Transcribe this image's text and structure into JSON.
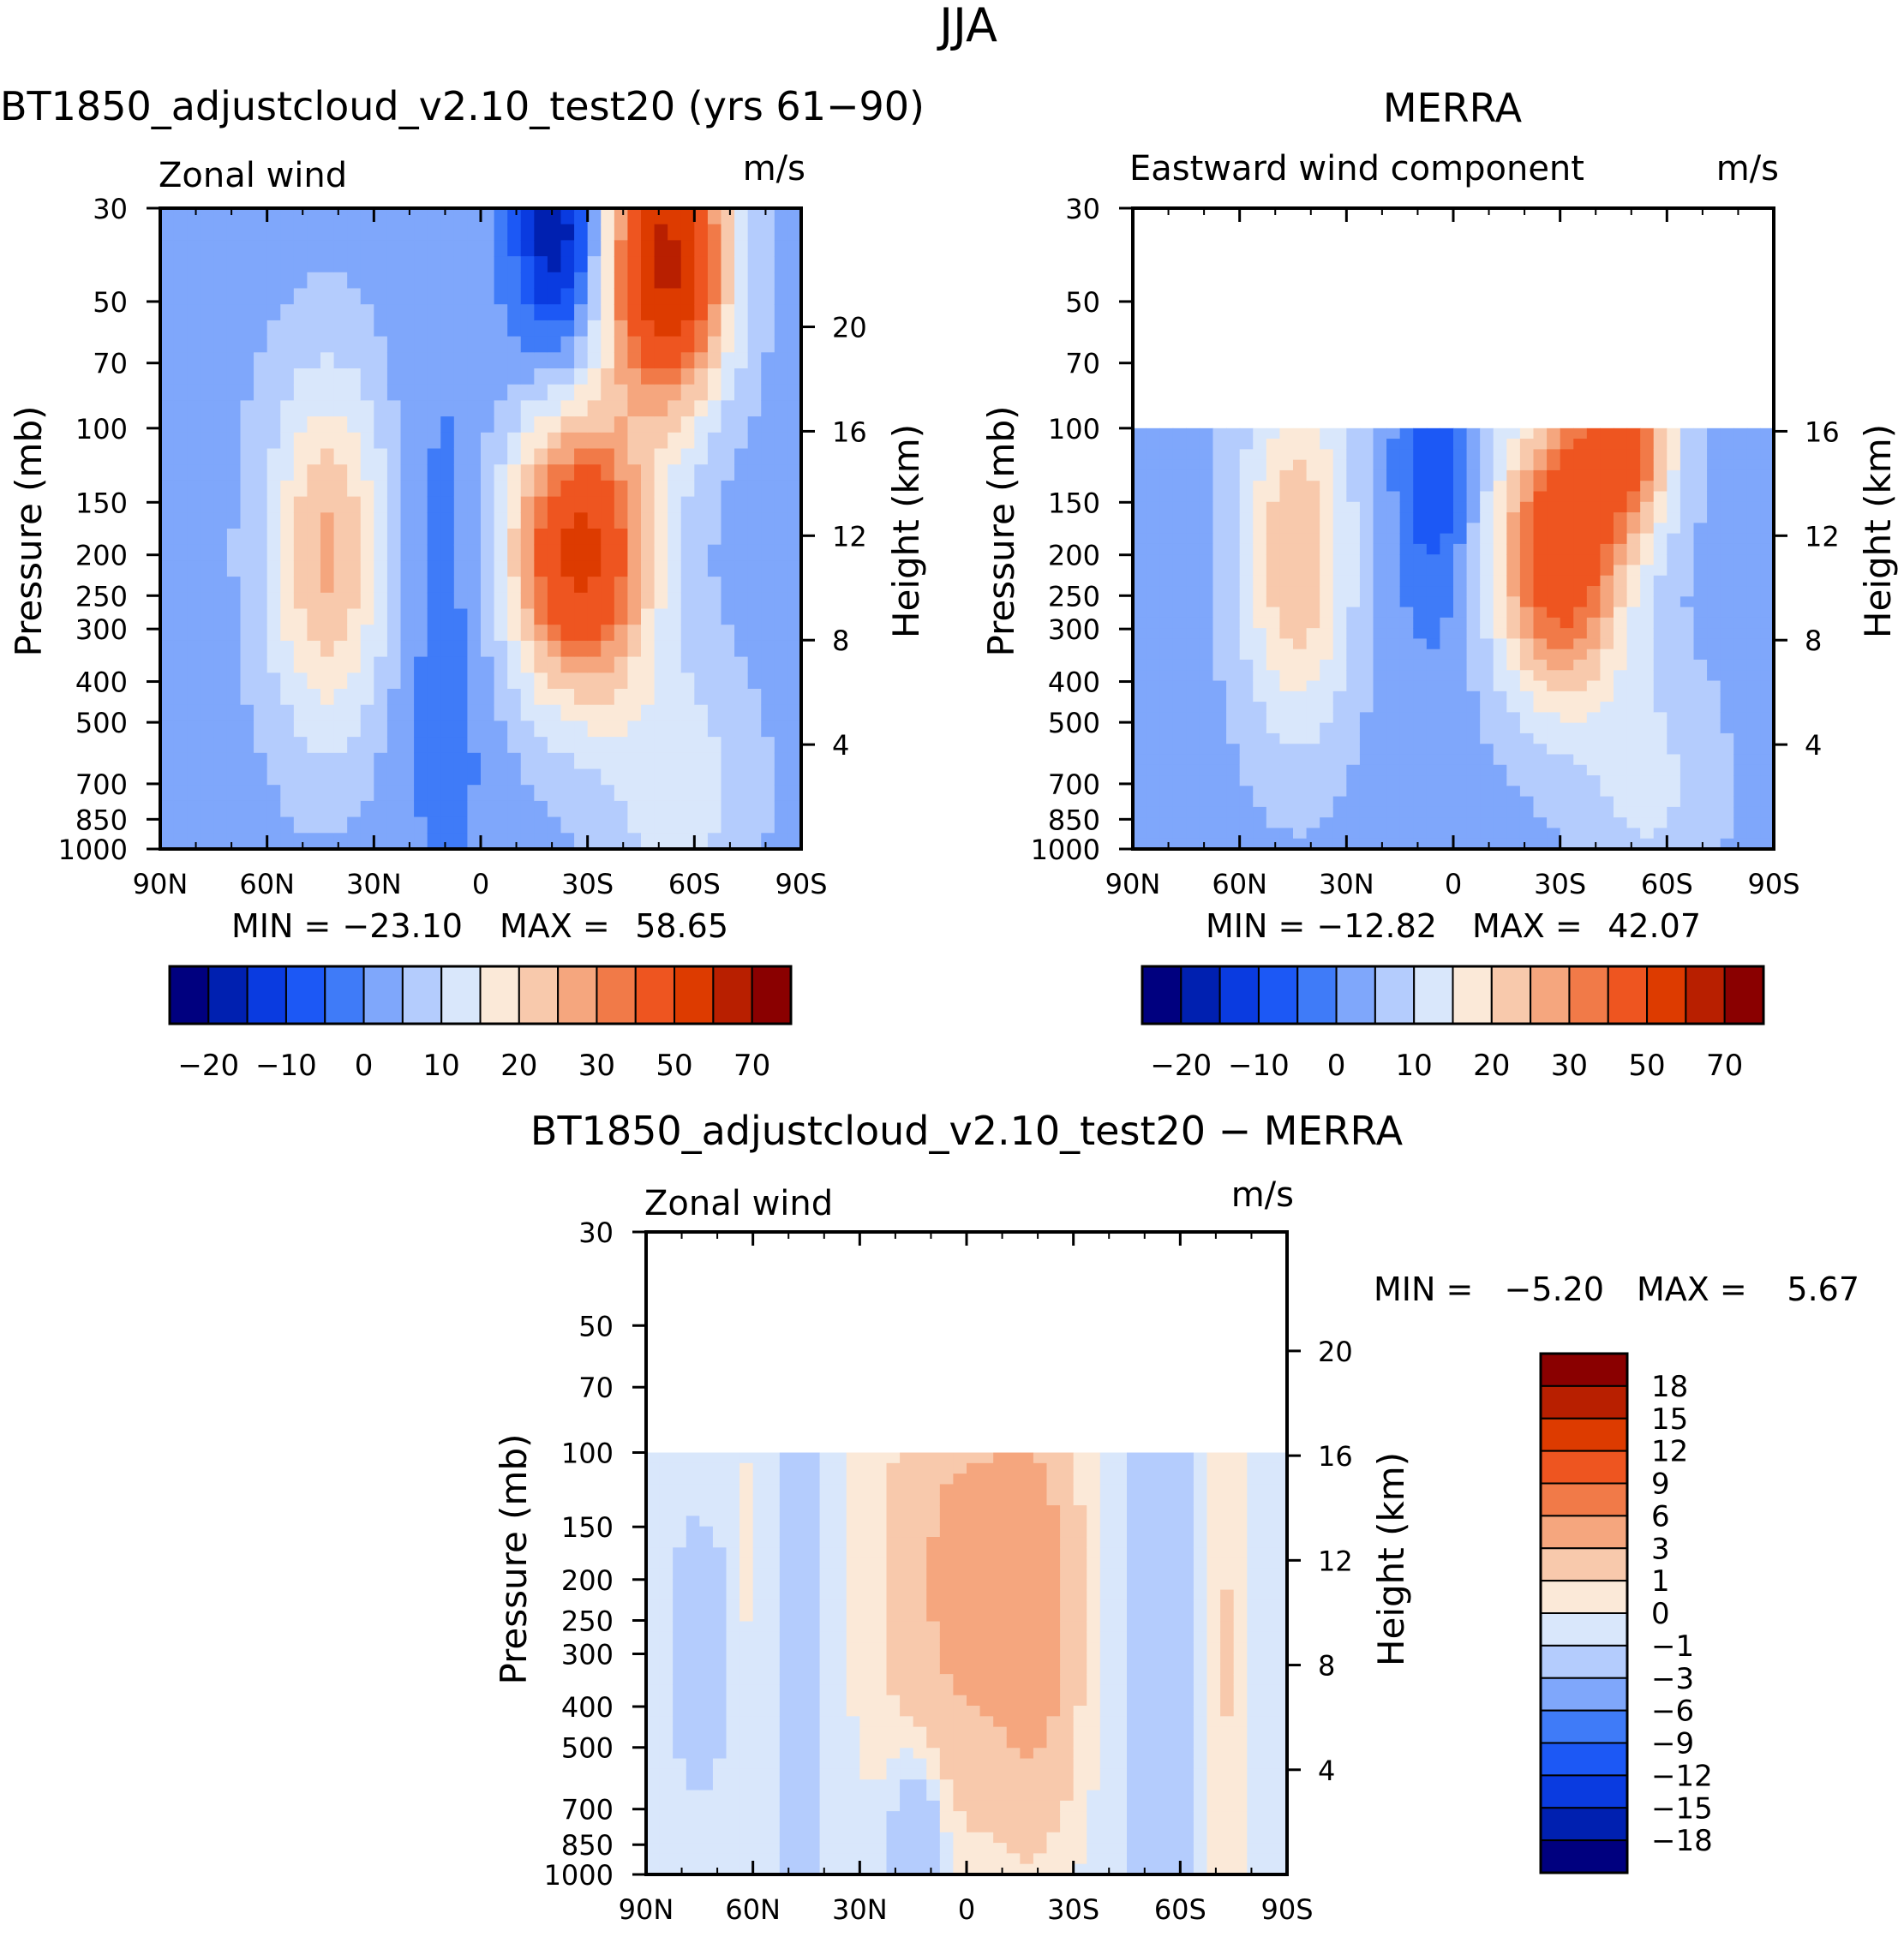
{
  "figure_title": "JJA",
  "colors": {
    "full": [
      "#00007f",
      "#0020b0",
      "#0a3be0",
      "#1c58f5",
      "#3f7bf8",
      "#7fa7fb",
      "#b4ccfd",
      "#d9e7fb",
      "#fbe9d8",
      "#f8c9ac",
      "#f5a67e",
      "#f17a48",
      "#ee5520",
      "#dd3b00",
      "#b81f00",
      "#8a0000"
    ],
    "diff": [
      "#00007f",
      "#0020b0",
      "#0a3be0",
      "#1c58f5",
      "#3f7bf8",
      "#7fa7fb",
      "#b4ccfd",
      "#d9e7fb",
      "#fbe9d8",
      "#f8c9ac",
      "#f5a67e",
      "#f17a48",
      "#ee5520",
      "#dd3b00",
      "#b81f00",
      "#8a0000"
    ]
  },
  "chart_data": [
    {
      "type": "heatmap",
      "id": "model",
      "title": "BT1850_adjustcloud_v2.10_test20 (yrs 61−90)",
      "left_label": "Zonal wind",
      "right_label": "m/s",
      "ylabel": "Pressure (mb)",
      "ylabel2": "Height (km)",
      "x_ticks": [
        "90N",
        "60N",
        "30N",
        "0",
        "30S",
        "60S",
        "90S"
      ],
      "y_ticks": [
        "30",
        "50",
        "70",
        "100",
        "150",
        "200",
        "250",
        "300",
        "400",
        "500",
        "700",
        "850",
        "1000"
      ],
      "y_ticks_values": [
        30,
        50,
        70,
        100,
        150,
        200,
        250,
        300,
        400,
        500,
        700,
        850,
        1000
      ],
      "height_ticks": [
        "20",
        "16",
        "12",
        "8",
        "4"
      ],
      "height_ticks_values": [
        20,
        16,
        12,
        8,
        4
      ],
      "xlim": [
        90,
        -90
      ],
      "ylim": [
        1000,
        30
      ],
      "data_top": 30,
      "min": -23.1,
      "max": 58.65,
      "min_label": "MIN =",
      "min_value": "−23.10",
      "max_label": "MAX =",
      "max_value": "58.65",
      "colorbar_labels": [
        "−20",
        "−10",
        "0",
        "10",
        "20",
        "30",
        "50",
        "70"
      ],
      "features": [
        {
          "lat": -52,
          "p": 40,
          "u": 55,
          "slat": 12,
          "sp": 0.55
        },
        {
          "lat": -28,
          "p": 200,
          "u": 45,
          "slat": 14,
          "sp": 0.55
        },
        {
          "lat": -22,
          "p": 35,
          "u": -23,
          "slat": 9,
          "sp": 0.45
        },
        {
          "lat": -55,
          "p": 700,
          "u": 10,
          "slat": 15,
          "sp": 0.5
        },
        {
          "lat": 43,
          "p": 200,
          "u": 23,
          "slat": 12,
          "sp": 0.7
        },
        {
          "lat": 10,
          "p": 300,
          "u": -6,
          "slat": 10,
          "sp": 1.2
        }
      ],
      "base_u": -2
    },
    {
      "type": "heatmap",
      "id": "obs",
      "title": "MERRA",
      "left_label": "Eastward wind component",
      "right_label": "m/s",
      "ylabel": "Pressure (mb)",
      "ylabel2": "Height (km)",
      "x_ticks": [
        "90N",
        "60N",
        "30N",
        "0",
        "30S",
        "60S",
        "90S"
      ],
      "y_ticks": [
        "30",
        "50",
        "70",
        "100",
        "150",
        "200",
        "250",
        "300",
        "400",
        "500",
        "700",
        "850",
        "1000"
      ],
      "y_ticks_values": [
        30,
        50,
        70,
        100,
        150,
        200,
        250,
        300,
        400,
        500,
        700,
        850,
        1000
      ],
      "height_ticks": [
        "16",
        "12",
        "8",
        "4"
      ],
      "height_ticks_values": [
        16,
        12,
        8,
        4
      ],
      "xlim": [
        90,
        -90
      ],
      "ylim": [
        1000,
        30
      ],
      "data_top": 100,
      "min": -12.82,
      "max": 42.07,
      "min_label": "MIN =",
      "min_value": "−12.82",
      "max_label": "MAX =",
      "max_value": "42.07",
      "colorbar_labels": [
        "−20",
        "−10",
        "0",
        "10",
        "20",
        "30",
        "50",
        "70"
      ],
      "features": [
        {
          "lat": -30,
          "p": 200,
          "u": 40,
          "slat": 13,
          "sp": 0.55
        },
        {
          "lat": -48,
          "p": 110,
          "u": 30,
          "slat": 10,
          "sp": 0.35
        },
        {
          "lat": -55,
          "p": 700,
          "u": 8,
          "slat": 14,
          "sp": 0.5
        },
        {
          "lat": 44,
          "p": 200,
          "u": 22,
          "slat": 11,
          "sp": 0.7
        },
        {
          "lat": 5,
          "p": 130,
          "u": -12,
          "slat": 8,
          "sp": 0.6
        }
      ],
      "base_u": -2
    },
    {
      "type": "heatmap",
      "id": "diff",
      "title": "BT1850_adjustcloud_v2.10_test20 − MERRA",
      "left_label": "Zonal wind",
      "right_label": "m/s",
      "ylabel": "Pressure (mb)",
      "ylabel2": "Height (km)",
      "x_ticks": [
        "90N",
        "60N",
        "30N",
        "0",
        "30S",
        "60S",
        "90S"
      ],
      "y_ticks": [
        "30",
        "50",
        "70",
        "100",
        "150",
        "200",
        "250",
        "300",
        "400",
        "500",
        "700",
        "850",
        "1000"
      ],
      "y_ticks_values": [
        30,
        50,
        70,
        100,
        150,
        200,
        250,
        300,
        400,
        500,
        700,
        850,
        1000
      ],
      "height_ticks": [
        "20",
        "16",
        "12",
        "8",
        "4"
      ],
      "height_ticks_values": [
        20,
        16,
        12,
        8,
        4
      ],
      "xlim": [
        90,
        -90
      ],
      "ylim": [
        1000,
        30
      ],
      "data_top": 100,
      "min": -5.2,
      "max": 5.67,
      "min_label": "MIN =",
      "min_value": "−5.20",
      "max_label": "MAX =",
      "max_value": "5.67",
      "colorbar_labels": [
        "18",
        "15",
        "12",
        "9",
        "6",
        "3",
        "1",
        "0",
        "−1",
        "−3",
        "−6",
        "−9",
        "−12",
        "−15",
        "−18"
      ],
      "features": [
        {
          "lat": 0,
          "p": 200,
          "u": 4.2,
          "slat": 16,
          "sp": 0.9
        },
        {
          "lat": -20,
          "p": 250,
          "u": 3.5,
          "slat": 8,
          "sp": 0.8
        },
        {
          "lat": -55,
          "p": 300,
          "u": -2.5,
          "slat": 6,
          "sp": 1.5
        },
        {
          "lat": -72,
          "p": 300,
          "u": 1.5,
          "slat": 5,
          "sp": 1.5
        },
        {
          "lat": 75,
          "p": 300,
          "u": -1.8,
          "slat": 6,
          "sp": 0.5
        },
        {
          "lat": 47,
          "p": 300,
          "u": -1.6,
          "slat": 5,
          "sp": 1.5
        },
        {
          "lat": 62,
          "p": 200,
          "u": 0.6,
          "slat": 3,
          "sp": 0.8
        },
        {
          "lat": 14,
          "p": 800,
          "u": -3.5,
          "slat": 5,
          "sp": 0.3
        }
      ],
      "base_u": -0.4
    }
  ]
}
